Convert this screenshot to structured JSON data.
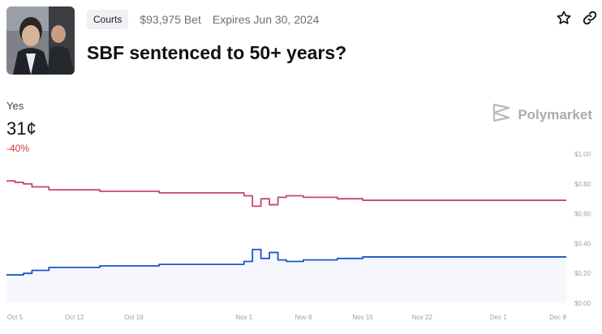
{
  "market": {
    "category": "Courts",
    "bet_amount": "$93,975 Bet",
    "expires": "Expires Jun 30, 2024",
    "title": "SBF sentenced to 50+ years?"
  },
  "icons": {
    "favorite": "star-icon",
    "share": "link-icon",
    "brand": "polymarket-logo-icon"
  },
  "outcome": {
    "label": "Yes",
    "price": "31¢",
    "change": "-40%"
  },
  "brand": {
    "name": "Polymarket"
  },
  "colors": {
    "no_line": "#c9436f",
    "yes_line": "#1f53c9",
    "change": "#d0333a"
  },
  "chart_data": {
    "type": "line",
    "ylim": [
      0,
      1
    ],
    "y_ticks": [
      "$1.00",
      "$0.80",
      "$0.60",
      "$0.40",
      "$0.20",
      "$0.00"
    ],
    "x_ticks": [
      "Oct 5",
      "Oct 12",
      "Oct 19",
      "Nov 1",
      "Nov 8",
      "Nov 15",
      "Nov 22",
      "Dec 1",
      "Dec 8"
    ],
    "x": [
      "Oct 4",
      "Oct 5",
      "Oct 6",
      "Oct 7",
      "Oct 9",
      "Oct 12",
      "Oct 15",
      "Oct 19",
      "Oct 22",
      "Oct 26",
      "Oct 29",
      "Nov 1",
      "Nov 2",
      "Nov 3",
      "Nov 4",
      "Nov 5",
      "Nov 6",
      "Nov 8",
      "Nov 12",
      "Nov 15",
      "Nov 20",
      "Nov 25",
      "Dec 1",
      "Dec 5",
      "Dec 8"
    ],
    "series": [
      {
        "values": [
          0.82,
          0.81,
          0.8,
          0.78,
          0.76,
          0.76,
          0.75,
          0.75,
          0.74,
          0.74,
          0.74,
          0.72,
          0.65,
          0.7,
          0.66,
          0.71,
          0.72,
          0.71,
          0.7,
          0.69,
          0.69,
          0.69,
          0.69,
          0.69,
          0.69
        ]
      },
      {
        "values": [
          0.19,
          0.19,
          0.2,
          0.22,
          0.24,
          0.24,
          0.25,
          0.25,
          0.26,
          0.26,
          0.26,
          0.28,
          0.36,
          0.3,
          0.34,
          0.29,
          0.28,
          0.29,
          0.3,
          0.31,
          0.31,
          0.31,
          0.31,
          0.31,
          0.31
        ]
      }
    ]
  }
}
